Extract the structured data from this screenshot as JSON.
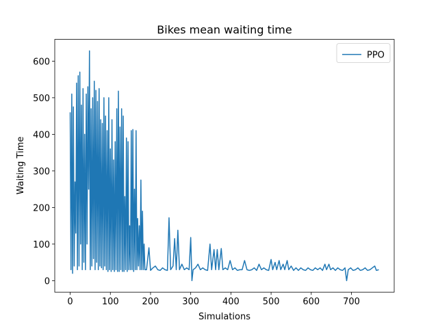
{
  "chart_data": {
    "type": "line",
    "title": "Bikes mean waiting time",
    "x_label": "Simulations",
    "y_label": "Waiting Time",
    "x": [
      0,
      2,
      4,
      6,
      8,
      10,
      12,
      14,
      16,
      18,
      20,
      22,
      24,
      26,
      28,
      30,
      32,
      34,
      36,
      38,
      40,
      42,
      44,
      46,
      48,
      50,
      52,
      54,
      56,
      58,
      60,
      62,
      64,
      66,
      68,
      70,
      72,
      74,
      76,
      78,
      80,
      82,
      84,
      86,
      88,
      90,
      92,
      94,
      96,
      98,
      100,
      102,
      104,
      106,
      108,
      110,
      112,
      114,
      116,
      118,
      120,
      122,
      124,
      126,
      128,
      130,
      132,
      134,
      136,
      138,
      140,
      142,
      144,
      146,
      148,
      150,
      152,
      154,
      156,
      158,
      160,
      162,
      164,
      166,
      168,
      170,
      172,
      174,
      176,
      178,
      180,
      182,
      184,
      186,
      190,
      196,
      200,
      206,
      212,
      218,
      224,
      230,
      236,
      242,
      246,
      250,
      256,
      260,
      264,
      268,
      272,
      278,
      284,
      290,
      296,
      300,
      303,
      306,
      312,
      318,
      324,
      330,
      336,
      342,
      348,
      352,
      358,
      362,
      366,
      370,
      376,
      380,
      386,
      392,
      398,
      404,
      410,
      416,
      422,
      428,
      434,
      440,
      446,
      452,
      458,
      464,
      470,
      476,
      482,
      488,
      494,
      500,
      504,
      510,
      514,
      520,
      524,
      530,
      534,
      540,
      544,
      550,
      556,
      562,
      568,
      574,
      580,
      586,
      592,
      598,
      604,
      610,
      616,
      622,
      628,
      634,
      638,
      644,
      648,
      654,
      660,
      666,
      672,
      678,
      684,
      688,
      692,
      698,
      704,
      710,
      716,
      722,
      728,
      734,
      740,
      746,
      752,
      758,
      762,
      768
    ],
    "series": [
      {
        "name": "PPO",
        "color": "#1f77b4",
        "values": [
          460,
          30,
          510,
          20,
          475,
          40,
          270,
          130,
          540,
          30,
          560,
          40,
          570,
          100,
          480,
          30,
          525,
          50,
          400,
          30,
          510,
          100,
          530,
          250,
          628,
          30,
          470,
          40,
          500,
          60,
          545,
          30,
          520,
          50,
          490,
          30,
          525,
          40,
          440,
          35,
          430,
          30,
          500,
          40,
          450,
          30,
          410,
          25,
          500,
          30,
          360,
          25,
          440,
          30,
          330,
          25,
          380,
          30,
          470,
          25,
          518,
          25,
          420,
          30,
          470,
          25,
          450,
          25,
          230,
          30,
          390,
          25,
          380,
          30,
          150,
          30,
          410,
          30,
          413,
          25,
          250,
          30,
          410,
          30,
          170,
          40,
          150,
          30,
          275,
          30,
          190,
          30,
          100,
          30,
          30,
          90,
          28,
          35,
          40,
          30,
          28,
          35,
          30,
          28,
          172,
          30,
          40,
          115,
          30,
          138,
          30,
          45,
          30,
          35,
          30,
          118,
          0,
          30,
          35,
          45,
          30,
          35,
          30,
          28,
          100,
          30,
          85,
          30,
          85,
          30,
          88,
          30,
          35,
          30,
          55,
          30,
          35,
          28,
          30,
          30,
          55,
          30,
          28,
          30,
          35,
          28,
          45,
          30,
          35,
          30,
          28,
          58,
          30,
          50,
          30,
          55,
          30,
          45,
          30,
          55,
          30,
          40,
          28,
          35,
          28,
          35,
          30,
          28,
          35,
          30,
          28,
          35,
          30,
          35,
          28,
          45,
          30,
          45,
          30,
          35,
          28,
          35,
          30,
          28,
          35,
          0,
          30,
          35,
          28,
          30,
          35,
          28,
          30,
          35,
          28,
          30,
          35,
          40,
          28,
          30
        ]
      }
    ],
    "xlim": [
      -38.4,
      806.4
    ],
    "ylim": [
      -31.4,
      659.4
    ],
    "xticks": [
      0,
      100,
      200,
      300,
      400,
      500,
      600,
      700
    ],
    "yticks": [
      0,
      100,
      200,
      300,
      400,
      500,
      600
    ],
    "legend": "upper right"
  }
}
